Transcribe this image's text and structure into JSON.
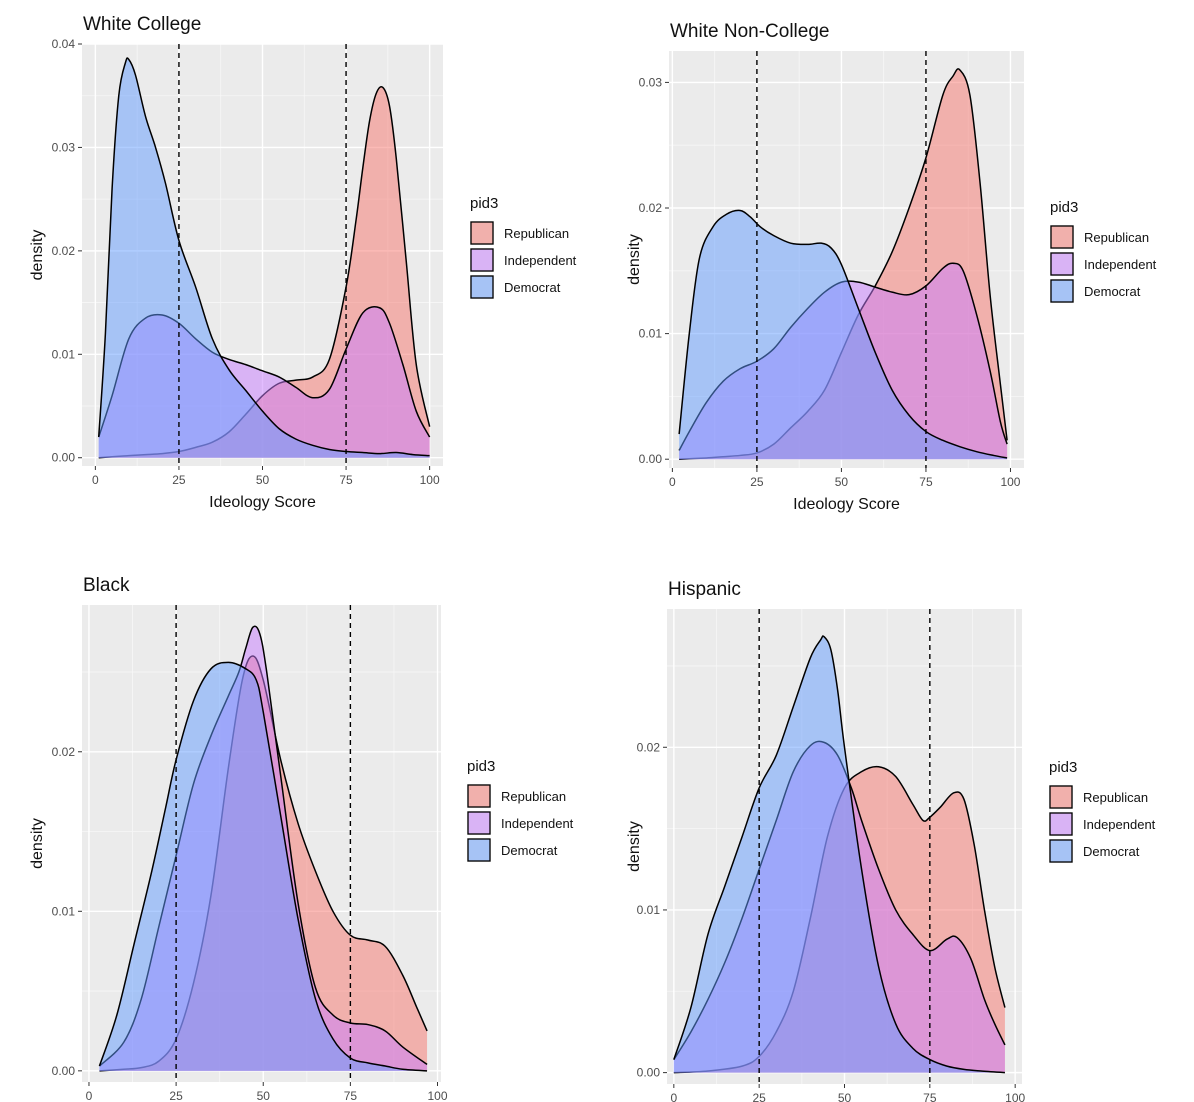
{
  "chart_data": [
    {
      "type": "area",
      "title": "White College",
      "xlabel": "Ideology Score",
      "ylabel": "density",
      "xlim": [
        -4,
        104
      ],
      "ylim": [
        -0.0008,
        0.04
      ],
      "xticks": [
        0,
        25,
        50,
        75,
        100
      ],
      "xtick_labels": [
        "0",
        "25",
        "50",
        "75",
        "100"
      ],
      "yticks": [
        0,
        0.01,
        0.02,
        0.03,
        0.04
      ],
      "ytick_labels": [
        "0.00",
        "0.01",
        "0.02",
        "0.03",
        "0.04"
      ],
      "vlines": [
        25,
        75
      ],
      "legend_title": "pid3",
      "series": [
        {
          "name": "Republican",
          "color": "#f8766d",
          "x": [
            1,
            5,
            10,
            15,
            20,
            25,
            30,
            35,
            40,
            45,
            50,
            55,
            60,
            65,
            70,
            75,
            78,
            80,
            82,
            84,
            86,
            88,
            90,
            93,
            96,
            100
          ],
          "y": [
            0,
            0.0001,
            0.0002,
            0.0003,
            0.0004,
            0.0006,
            0.001,
            0.0015,
            0.0025,
            0.0042,
            0.006,
            0.0072,
            0.0075,
            0.0078,
            0.0095,
            0.0165,
            0.023,
            0.028,
            0.0325,
            0.0352,
            0.0358,
            0.034,
            0.029,
            0.019,
            0.009,
            0.003
          ]
        },
        {
          "name": "Independent",
          "color": "#c77cff",
          "x": [
            1,
            5,
            10,
            15,
            20,
            25,
            30,
            35,
            40,
            45,
            50,
            55,
            60,
            65,
            70,
            75,
            80,
            85,
            88,
            92,
            96,
            100
          ],
          "y": [
            0.002,
            0.006,
            0.0115,
            0.0135,
            0.0138,
            0.013,
            0.0115,
            0.0102,
            0.0095,
            0.009,
            0.0084,
            0.0078,
            0.0068,
            0.0058,
            0.0066,
            0.0105,
            0.014,
            0.0145,
            0.013,
            0.009,
            0.0045,
            0.002
          ]
        },
        {
          "name": "Democrat",
          "color": "#619cff",
          "x": [
            1,
            3,
            5,
            7,
            9,
            10,
            12,
            15,
            18,
            21,
            25,
            30,
            35,
            40,
            45,
            50,
            55,
            60,
            65,
            70,
            75,
            80,
            85,
            90,
            95,
            100
          ],
          "y": [
            0.002,
            0.012,
            0.026,
            0.035,
            0.0382,
            0.0385,
            0.037,
            0.033,
            0.03,
            0.0265,
            0.021,
            0.0165,
            0.0115,
            0.0085,
            0.0065,
            0.0045,
            0.0028,
            0.0018,
            0.0012,
            0.0008,
            0.0006,
            0.0005,
            0.0004,
            0.0005,
            0.0003,
            0.0002
          ]
        }
      ]
    },
    {
      "type": "area",
      "title": "White Non-College",
      "xlabel": "Ideology Score",
      "ylabel": "density",
      "xlim": [
        -1,
        104
      ],
      "ylim": [
        -0.0007,
        0.0325
      ],
      "xticks": [
        0,
        25,
        50,
        75,
        100
      ],
      "xtick_labels": [
        "0",
        "25",
        "50",
        "75",
        "100"
      ],
      "yticks": [
        0,
        0.01,
        0.02,
        0.03
      ],
      "ytick_labels": [
        "0.00",
        "0.01",
        "0.02",
        "0.03"
      ],
      "vlines": [
        25,
        75
      ],
      "legend_title": "pid3",
      "series": [
        {
          "name": "Republican",
          "color": "#f8766d",
          "x": [
            2,
            10,
            15,
            20,
            25,
            30,
            35,
            40,
            45,
            50,
            55,
            60,
            65,
            70,
            75,
            80,
            83,
            85,
            88,
            91,
            94,
            97,
            99
          ],
          "y": [
            0,
            0.0001,
            0.0002,
            0.0003,
            0.0005,
            0.0012,
            0.0025,
            0.0038,
            0.0055,
            0.0085,
            0.0115,
            0.0138,
            0.0165,
            0.02,
            0.024,
            0.029,
            0.0305,
            0.031,
            0.029,
            0.022,
            0.013,
            0.006,
            0.0015
          ]
        },
        {
          "name": "Independent",
          "color": "#c77cff",
          "x": [
            2,
            5,
            10,
            15,
            20,
            25,
            30,
            35,
            40,
            45,
            50,
            55,
            60,
            65,
            70,
            75,
            80,
            83,
            86,
            90,
            94,
            97,
            99
          ],
          "y": [
            0.0007,
            0.0022,
            0.0045,
            0.0062,
            0.0072,
            0.0078,
            0.0088,
            0.0105,
            0.012,
            0.0133,
            0.0141,
            0.0141,
            0.0137,
            0.0133,
            0.0131,
            0.0138,
            0.0152,
            0.0156,
            0.015,
            0.0115,
            0.007,
            0.003,
            0.0012
          ]
        },
        {
          "name": "Democrat",
          "color": "#619cff",
          "x": [
            2,
            5,
            8,
            12,
            16,
            20,
            23,
            26,
            30,
            35,
            40,
            44,
            47,
            50,
            55,
            60,
            65,
            70,
            75,
            80,
            85,
            90,
            95,
            99
          ],
          "y": [
            0.002,
            0.01,
            0.016,
            0.0185,
            0.0195,
            0.0198,
            0.0193,
            0.0185,
            0.0178,
            0.0172,
            0.0171,
            0.0172,
            0.0168,
            0.0155,
            0.012,
            0.0085,
            0.0055,
            0.0035,
            0.0022,
            0.0015,
            0.001,
            0.0006,
            0.0003,
            0.0001
          ]
        }
      ]
    },
    {
      "type": "area",
      "title": "Black",
      "xlabel": "Ideology Score",
      "ylabel": "density",
      "xlim": [
        -2,
        101
      ],
      "ylim": [
        -0.0007,
        0.0292
      ],
      "xticks": [
        0,
        25,
        50,
        75,
        100
      ],
      "xtick_labels": [
        "0",
        "25",
        "50",
        "75",
        "100"
      ],
      "yticks": [
        0,
        0.01,
        0.02
      ],
      "ytick_labels": [
        "0.00",
        "0.01",
        "0.02"
      ],
      "vlines": [
        25,
        75
      ],
      "legend_title": "pid3",
      "series": [
        {
          "name": "Republican",
          "color": "#f8766d",
          "x": [
            3,
            10,
            15,
            20,
            25,
            30,
            35,
            40,
            44,
            47,
            50,
            55,
            60,
            65,
            70,
            75,
            80,
            85,
            90,
            94,
            97
          ],
          "y": [
            0,
            0.0001,
            0.0002,
            0.0006,
            0.002,
            0.0055,
            0.011,
            0.019,
            0.0245,
            0.026,
            0.0245,
            0.0195,
            0.0155,
            0.0125,
            0.01,
            0.0085,
            0.0082,
            0.0078,
            0.006,
            0.004,
            0.0025
          ]
        },
        {
          "name": "Independent",
          "color": "#c77cff",
          "x": [
            3,
            10,
            15,
            20,
            25,
            30,
            35,
            40,
            43,
            45,
            47,
            49,
            51,
            55,
            60,
            65,
            70,
            75,
            80,
            85,
            90,
            97
          ],
          "y": [
            0.0003,
            0.0018,
            0.0045,
            0.009,
            0.0135,
            0.018,
            0.021,
            0.0235,
            0.025,
            0.0265,
            0.0278,
            0.0274,
            0.025,
            0.0185,
            0.0105,
            0.0052,
            0.0035,
            0.003,
            0.0029,
            0.0025,
            0.0015,
            0.0004
          ]
        },
        {
          "name": "Democrat",
          "color": "#619cff",
          "x": [
            3,
            8,
            13,
            18,
            22,
            25,
            30,
            35,
            40,
            45,
            48,
            50,
            55,
            60,
            65,
            70,
            75,
            80,
            85,
            90,
            97
          ],
          "y": [
            0.0003,
            0.0035,
            0.008,
            0.0125,
            0.0165,
            0.0195,
            0.0232,
            0.0252,
            0.0256,
            0.0252,
            0.0245,
            0.0225,
            0.016,
            0.0095,
            0.0045,
            0.002,
            0.0008,
            0.0005,
            0.0003,
            0.0001,
            0
          ]
        }
      ]
    },
    {
      "type": "area",
      "title": "Hispanic",
      "xlabel": "Ideology Score",
      "ylabel": "density",
      "xlim": [
        -2,
        102
      ],
      "ylim": [
        -0.0007,
        0.0285
      ],
      "xticks": [
        0,
        25,
        50,
        75,
        100
      ],
      "xtick_labels": [
        "0",
        "25",
        "50",
        "75",
        "100"
      ],
      "yticks": [
        0,
        0.01,
        0.02
      ],
      "ytick_labels": [
        "0.00",
        "0.01",
        "0.02"
      ],
      "vlines": [
        25,
        75
      ],
      "legend_title": "pid3",
      "series": [
        {
          "name": "Republican",
          "color": "#f8766d",
          "x": [
            0,
            10,
            20,
            25,
            30,
            35,
            40,
            45,
            50,
            55,
            60,
            65,
            70,
            73,
            75,
            78,
            82,
            85,
            88,
            91,
            94,
            97
          ],
          "y": [
            0,
            0.0001,
            0.0004,
            0.001,
            0.0025,
            0.005,
            0.0095,
            0.0145,
            0.0175,
            0.0185,
            0.0188,
            0.0182,
            0.0165,
            0.0155,
            0.0157,
            0.0163,
            0.0172,
            0.0168,
            0.014,
            0.01,
            0.0065,
            0.004
          ]
        },
        {
          "name": "Independent",
          "color": "#c77cff",
          "x": [
            0,
            5,
            10,
            15,
            20,
            25,
            30,
            35,
            40,
            44,
            48,
            52,
            55,
            60,
            65,
            70,
            75,
            80,
            83,
            87,
            91,
            94,
            97
          ],
          "y": [
            0.0008,
            0.0025,
            0.0045,
            0.0068,
            0.0095,
            0.0125,
            0.0155,
            0.0185,
            0.0201,
            0.0203,
            0.0195,
            0.0175,
            0.0155,
            0.0125,
            0.01,
            0.0085,
            0.0075,
            0.0082,
            0.0083,
            0.007,
            0.0045,
            0.003,
            0.0017
          ]
        },
        {
          "name": "Democrat",
          "color": "#619cff",
          "x": [
            0,
            5,
            10,
            15,
            20,
            25,
            30,
            35,
            40,
            43,
            44,
            46,
            48,
            50,
            55,
            60,
            65,
            70,
            75,
            80,
            85,
            90,
            97
          ],
          "y": [
            0.0008,
            0.004,
            0.0085,
            0.0115,
            0.0145,
            0.0175,
            0.0195,
            0.0225,
            0.0255,
            0.0266,
            0.0268,
            0.026,
            0.0235,
            0.02,
            0.0125,
            0.0065,
            0.003,
            0.0015,
            0.0008,
            0.0004,
            0.0002,
            0.0001,
            0
          ]
        }
      ]
    }
  ]
}
